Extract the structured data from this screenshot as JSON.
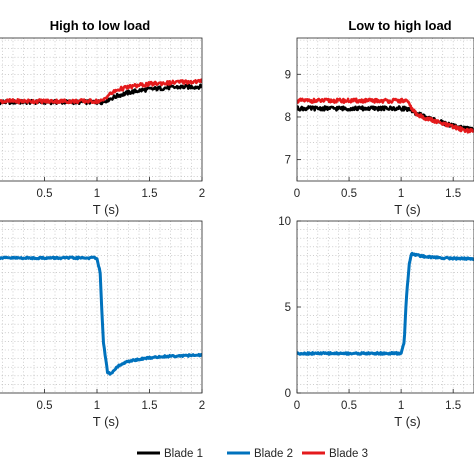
{
  "legend": {
    "placement": "bottom",
    "items": [
      {
        "name": "Blade 1",
        "color": "#000000"
      },
      {
        "name": "Blade 2",
        "color": "#0072BD"
      },
      {
        "name": "Blade 3",
        "color": "#E41A1C"
      }
    ]
  },
  "chart_data": [
    {
      "id": "top-left",
      "type": "line",
      "title": "High to low load",
      "xlabel": "T (s)",
      "ylabel": "",
      "xlim": [
        0,
        2
      ],
      "ylim": [
        6.5,
        9.85
      ],
      "xticks": [
        0.5,
        1,
        1.5,
        2
      ],
      "yticks": [],
      "grid": true,
      "series": [
        {
          "name": "Blade 1",
          "color": "#000000",
          "x": [
            0,
            1.05,
            1.1,
            1.2,
            1.3,
            1.4,
            1.5,
            1.6,
            1.7,
            1.8,
            2.0
          ],
          "y": [
            8.35,
            8.35,
            8.4,
            8.5,
            8.57,
            8.62,
            8.65,
            8.67,
            8.69,
            8.7,
            8.71
          ]
        },
        {
          "name": "Blade 3",
          "color": "#E41A1C",
          "x": [
            0,
            1.05,
            1.1,
            1.2,
            1.3,
            1.4,
            1.5,
            1.6,
            1.7,
            1.8,
            2.0
          ],
          "y": [
            8.37,
            8.37,
            8.5,
            8.64,
            8.7,
            8.74,
            8.77,
            8.79,
            8.8,
            8.82,
            8.83
          ]
        }
      ]
    },
    {
      "id": "top-right",
      "type": "line",
      "title": "Low to high load",
      "xlabel": "T (s)",
      "ylabel": "",
      "xlim": [
        0,
        1.7
      ],
      "ylim": [
        6.5,
        9.85
      ],
      "xticks": [
        0,
        0.5,
        1,
        1.5
      ],
      "yticks": [
        7,
        8,
        9
      ],
      "grid": true,
      "series": [
        {
          "name": "Blade 1",
          "color": "#000000",
          "x": [
            0,
            1.05,
            1.15,
            1.3,
            1.45,
            1.6,
            1.7
          ],
          "y": [
            8.2,
            8.2,
            8.08,
            7.95,
            7.82,
            7.74,
            7.7
          ]
        },
        {
          "name": "Blade 3",
          "color": "#E41A1C",
          "x": [
            0,
            1.05,
            1.15,
            1.3,
            1.45,
            1.6,
            1.7
          ],
          "y": [
            8.38,
            8.38,
            8.05,
            7.92,
            7.8,
            7.7,
            7.66
          ]
        }
      ]
    },
    {
      "id": "bottom-left",
      "type": "line",
      "title": "",
      "xlabel": "T (s)",
      "ylabel": "",
      "xlim": [
        0,
        2
      ],
      "ylim": [
        0,
        10
      ],
      "xticks": [
        0.5,
        1,
        1.5,
        2
      ],
      "yticks": [],
      "grid": true,
      "series": [
        {
          "name": "Blade 2",
          "color": "#0072BD",
          "x": [
            0,
            0.9,
            0.95,
            1.0,
            1.03,
            1.06,
            1.1,
            1.13,
            1.2,
            1.3,
            1.5,
            1.7,
            2.0
          ],
          "y": [
            7.85,
            7.85,
            7.86,
            7.85,
            7.0,
            3.0,
            1.2,
            1.1,
            1.55,
            1.85,
            2.05,
            2.15,
            2.2
          ]
        }
      ]
    },
    {
      "id": "bottom-right",
      "type": "line",
      "title": "",
      "xlabel": "T (s)",
      "ylabel": "",
      "xlim": [
        0,
        1.7
      ],
      "ylim": [
        0,
        10
      ],
      "xticks": [
        0,
        0.5,
        1,
        1.5
      ],
      "yticks": [
        0,
        5,
        10
      ],
      "grid": true,
      "series": [
        {
          "name": "Blade 2",
          "color": "#0072BD",
          "x": [
            0,
            1.0,
            1.03,
            1.05,
            1.08,
            1.1,
            1.13,
            1.2,
            1.4,
            1.7
          ],
          "y": [
            2.3,
            2.3,
            3.0,
            5.5,
            7.6,
            8.1,
            8.05,
            7.95,
            7.85,
            7.8
          ]
        }
      ]
    }
  ]
}
